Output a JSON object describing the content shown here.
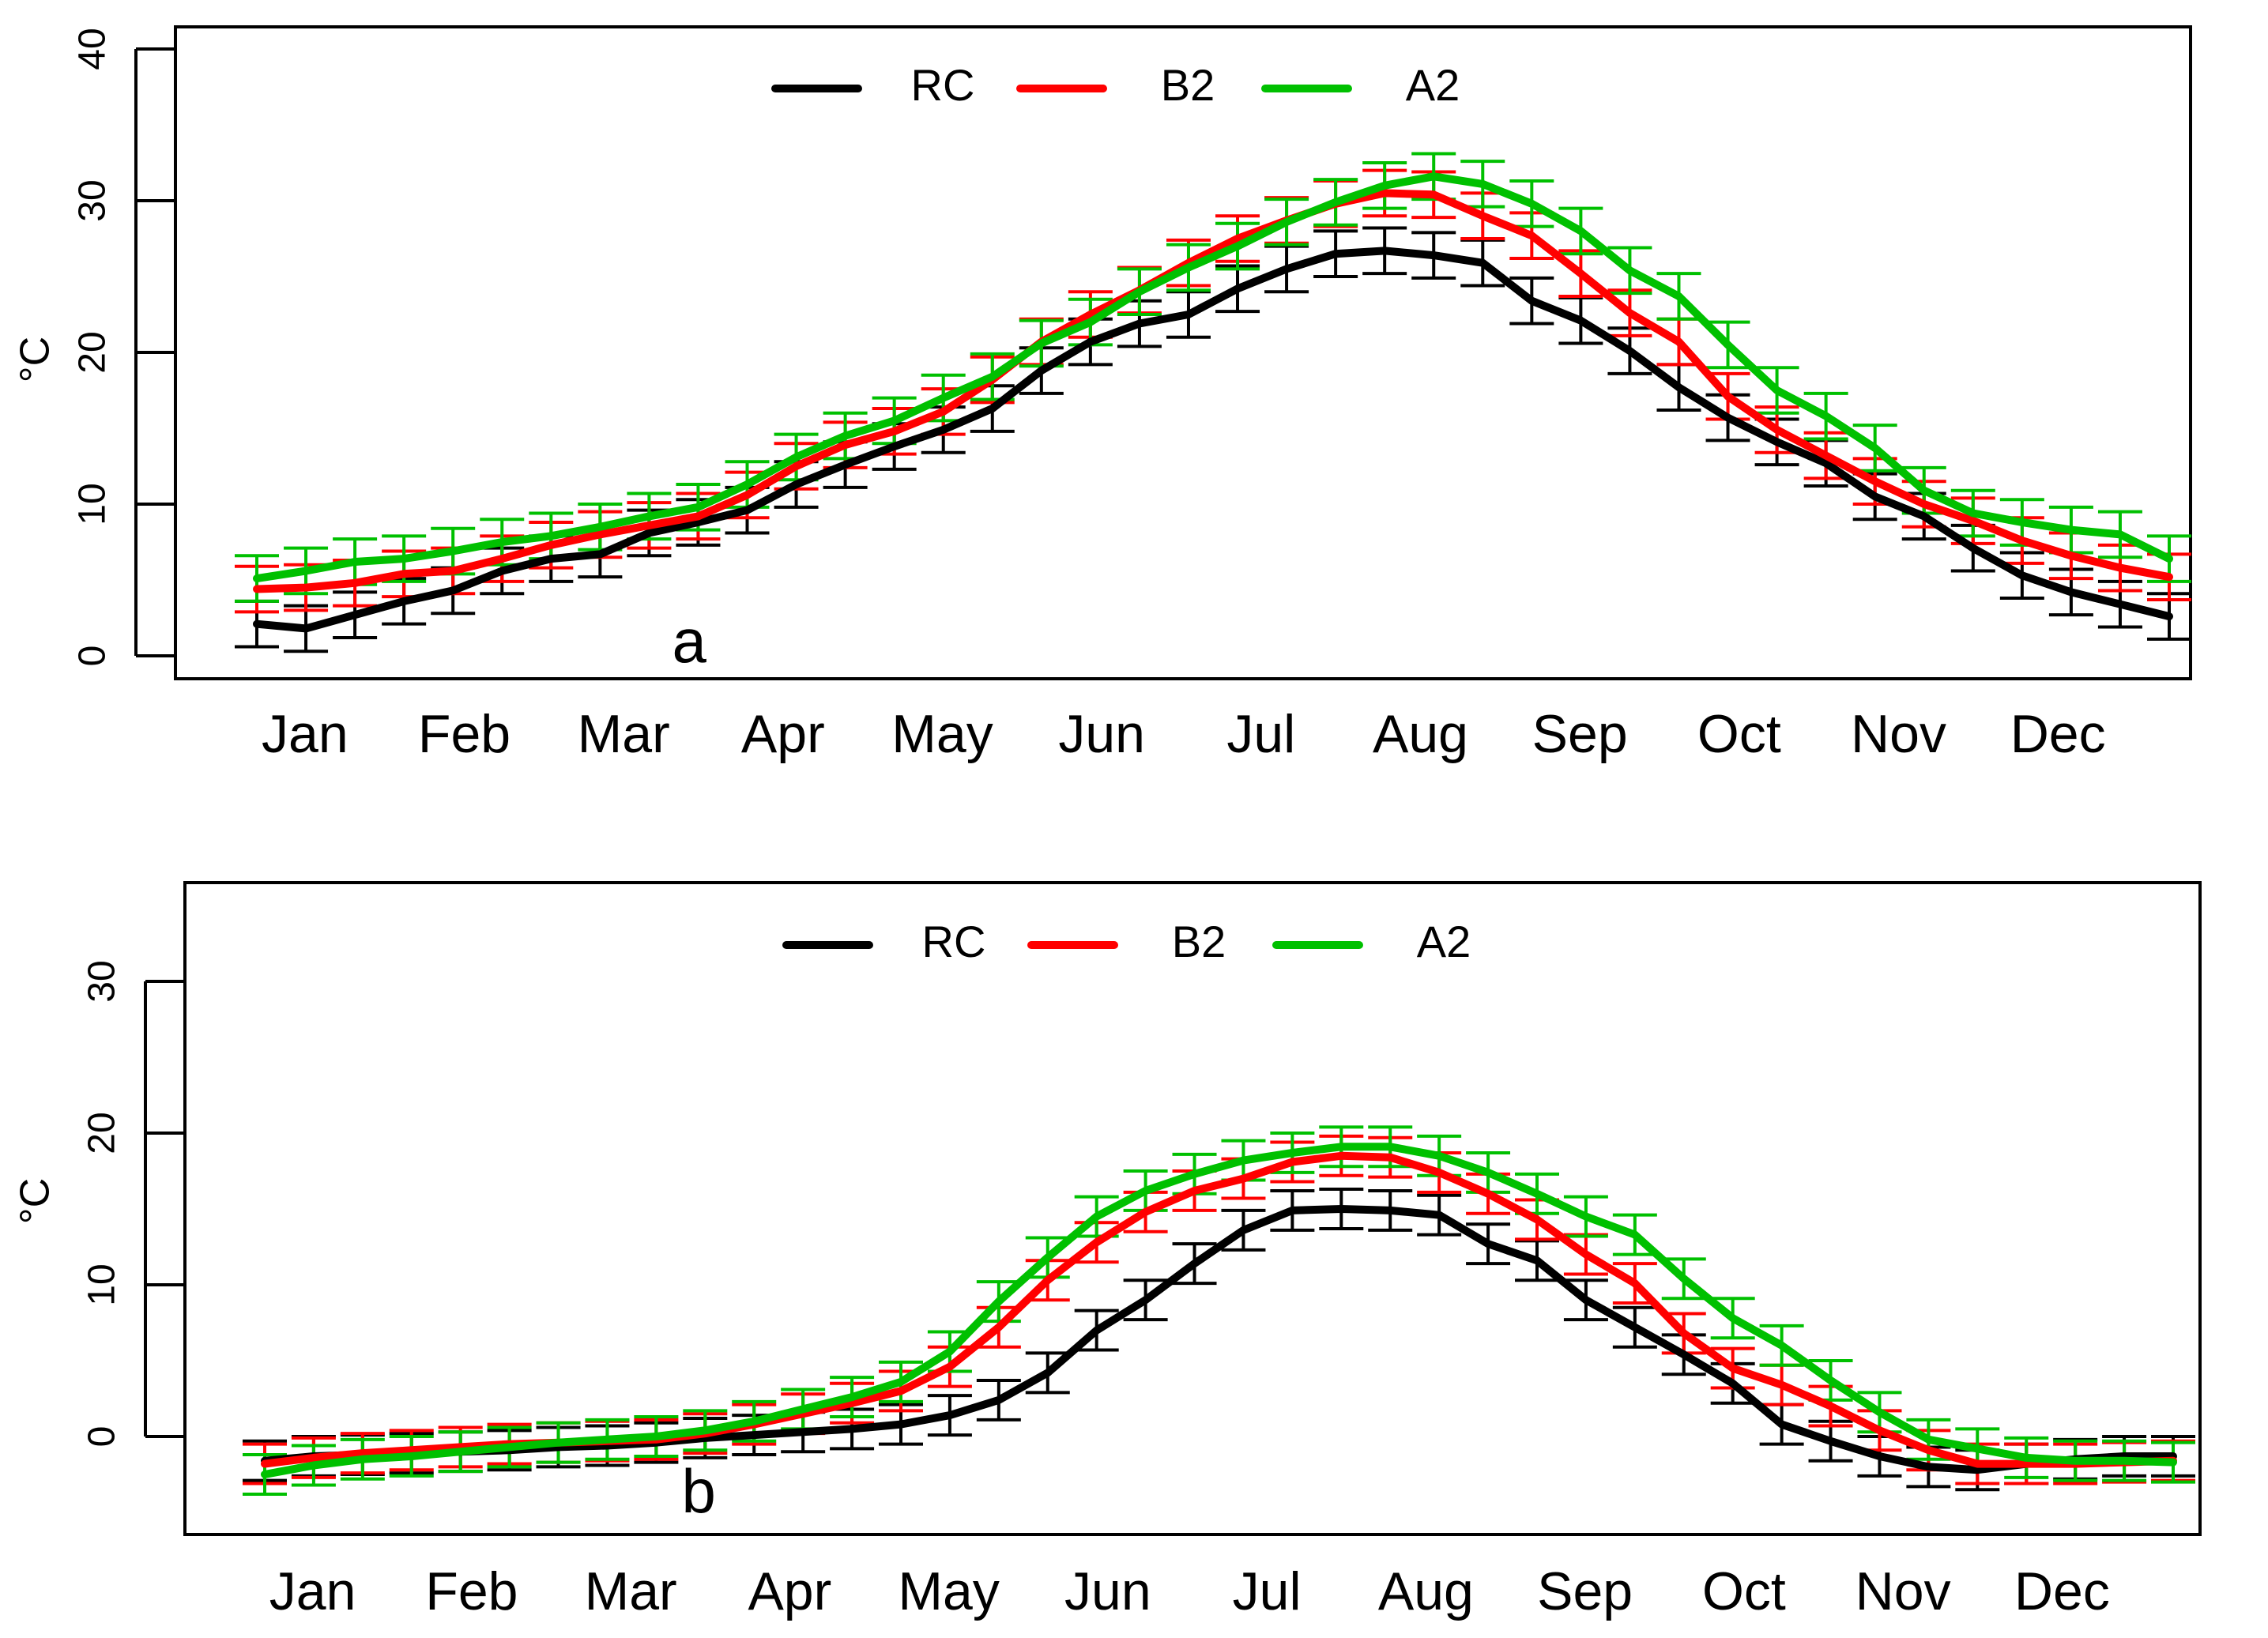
{
  "chart_data": [
    {
      "type": "line",
      "panel_label": "a",
      "ylabel": "°C",
      "ylim": [
        0,
        40
      ],
      "yticks": [
        0,
        10,
        20,
        30,
        40
      ],
      "month_labels": [
        "Jan",
        "Feb",
        "Mar",
        "Apr",
        "May",
        "Jun",
        "Jul",
        "Aug",
        "Sep",
        "Oct",
        "Nov",
        "Dec"
      ],
      "grid": false,
      "legend_placement": "top-center",
      "error_half_width": 1.5,
      "series": [
        {
          "name": "RC",
          "color": "#000000",
          "values": [
            2.1,
            1.8,
            2.7,
            3.6,
            4.3,
            5.6,
            6.4,
            6.7,
            8.1,
            8.8,
            9.6,
            11.3,
            12.6,
            13.8,
            14.9,
            16.3,
            18.8,
            20.7,
            21.9,
            22.5,
            24.2,
            25.5,
            26.5,
            26.7,
            26.4,
            25.9,
            23.4,
            22.1,
            20.1,
            17.7,
            15.7,
            14.1,
            12.7,
            10.5,
            9.2,
            7.1,
            5.3,
            4.2,
            3.4,
            2.6
          ]
        },
        {
          "name": "B2",
          "color": "#ff0000",
          "values": [
            4.4,
            4.5,
            4.8,
            5.4,
            5.6,
            6.4,
            7.3,
            8.0,
            8.6,
            9.2,
            10.6,
            12.5,
            13.9,
            14.8,
            16.1,
            18.2,
            20.7,
            22.5,
            24.1,
            25.9,
            27.5,
            28.7,
            29.8,
            30.5,
            30.4,
            29.0,
            27.7,
            25.2,
            22.6,
            20.7,
            17.1,
            14.9,
            13.2,
            11.5,
            10.0,
            8.9,
            7.6,
            6.6,
            5.8,
            5.2
          ]
        },
        {
          "name": "A2",
          "color": "#00c000",
          "values": [
            5.1,
            5.6,
            6.2,
            6.4,
            6.9,
            7.5,
            7.9,
            8.5,
            9.2,
            9.8,
            11.3,
            13.1,
            14.5,
            15.5,
            17.0,
            18.4,
            20.6,
            22.0,
            24.0,
            25.6,
            27.0,
            28.6,
            29.9,
            31.0,
            31.6,
            31.1,
            29.8,
            28.0,
            25.4,
            23.7,
            20.5,
            17.5,
            15.8,
            13.7,
            10.9,
            9.4,
            8.8,
            8.3,
            8.0,
            6.4
          ]
        }
      ]
    },
    {
      "type": "line",
      "panel_label": "b",
      "ylabel": "°C",
      "ylim": [
        -5,
        35
      ],
      "yticks": [
        0,
        10,
        20,
        30
      ],
      "month_labels": [
        "Jan",
        "Feb",
        "Mar",
        "Apr",
        "May",
        "Jun",
        "Jul",
        "Aug",
        "Sep",
        "Oct",
        "Nov",
        "Dec"
      ],
      "grid": false,
      "legend_placement": "top-center",
      "error_half_width": 1.3,
      "series": [
        {
          "name": "RC",
          "color": "#000000",
          "values": [
            -1.6,
            -1.3,
            -1.2,
            -1.1,
            -1.0,
            -0.9,
            -0.7,
            -0.6,
            -0.4,
            -0.1,
            0.1,
            0.3,
            0.5,
            0.8,
            1.4,
            2.4,
            4.2,
            7.0,
            9.0,
            11.4,
            13.6,
            14.9,
            15.0,
            14.9,
            14.6,
            12.7,
            11.6,
            9.0,
            7.2,
            5.4,
            3.5,
            0.8,
            -0.3,
            -1.3,
            -2.0,
            -2.2,
            -1.8,
            -1.5,
            -1.3,
            -1.3
          ]
        },
        {
          "name": "B2",
          "color": "#ff0000",
          "values": [
            -1.8,
            -1.4,
            -1.1,
            -0.9,
            -0.7,
            -0.5,
            -0.4,
            -0.3,
            -0.2,
            0.2,
            0.8,
            1.5,
            2.2,
            3.0,
            4.6,
            7.2,
            10.3,
            12.8,
            14.8,
            16.2,
            17.0,
            18.1,
            18.5,
            18.4,
            17.4,
            16.0,
            14.3,
            12.0,
            10.1,
            6.8,
            4.5,
            3.4,
            2.0,
            0.4,
            -0.9,
            -1.8,
            -1.8,
            -1.8,
            -1.7,
            -1.6
          ]
        },
        {
          "name": "A2",
          "color": "#00c000",
          "values": [
            -2.5,
            -1.9,
            -1.5,
            -1.3,
            -1.0,
            -0.7,
            -0.4,
            -0.2,
            0.0,
            0.4,
            1.0,
            1.8,
            2.6,
            3.6,
            5.6,
            8.9,
            11.8,
            14.5,
            16.2,
            17.3,
            18.2,
            18.7,
            19.1,
            19.1,
            18.5,
            17.4,
            16.0,
            14.5,
            13.3,
            10.4,
            7.8,
            6.0,
            3.7,
            1.6,
            -0.2,
            -0.8,
            -1.4,
            -1.6,
            -1.6,
            -1.7
          ]
        }
      ]
    }
  ]
}
